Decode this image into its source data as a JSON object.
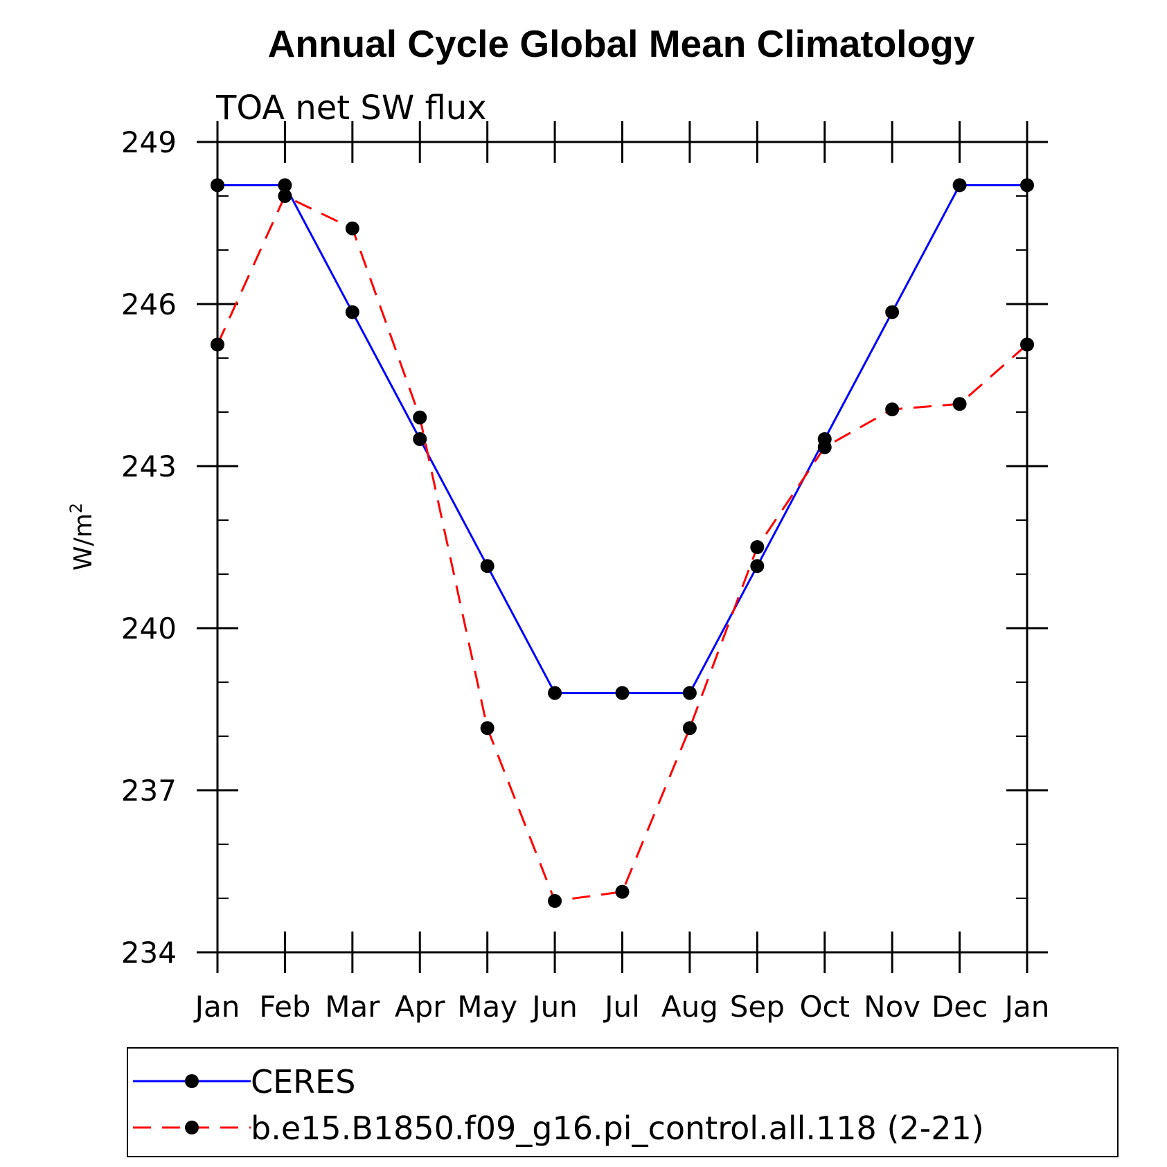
{
  "chart_data": {
    "type": "line",
    "title": "Annual Cycle Global Mean Climatology",
    "subtitle": "TOA net SW flux",
    "ylabel": "W/m",
    "ylabel_superscript": "2",
    "xlabel": "",
    "categories": [
      "Jan",
      "Feb",
      "Mar",
      "Apr",
      "May",
      "Jun",
      "Jul",
      "Aug",
      "Sep",
      "Oct",
      "Nov",
      "Dec",
      "Jan"
    ],
    "ylim": [
      234,
      249
    ],
    "yticks": [
      234,
      237,
      240,
      243,
      246,
      249
    ],
    "grid": false,
    "legend_position": "bottom",
    "series": [
      {
        "name": "CERES",
        "color": "#0000ff",
        "line_style": "solid",
        "marker": "filled-circle",
        "values": [
          248.2,
          248.2,
          245.85,
          243.5,
          241.15,
          238.8,
          238.8,
          238.8,
          241.15,
          243.5,
          245.85,
          248.2,
          248.2
        ]
      },
      {
        "name": "b.e15.B1850.f09_g16.pi_control.all.118 (2-21)",
        "color": "#ff0000",
        "line_style": "dashed",
        "marker": "filled-circle",
        "values": [
          245.25,
          248.0,
          247.4,
          243.9,
          238.15,
          234.95,
          235.12,
          238.15,
          241.5,
          243.35,
          244.05,
          244.15,
          245.25
        ]
      }
    ]
  }
}
